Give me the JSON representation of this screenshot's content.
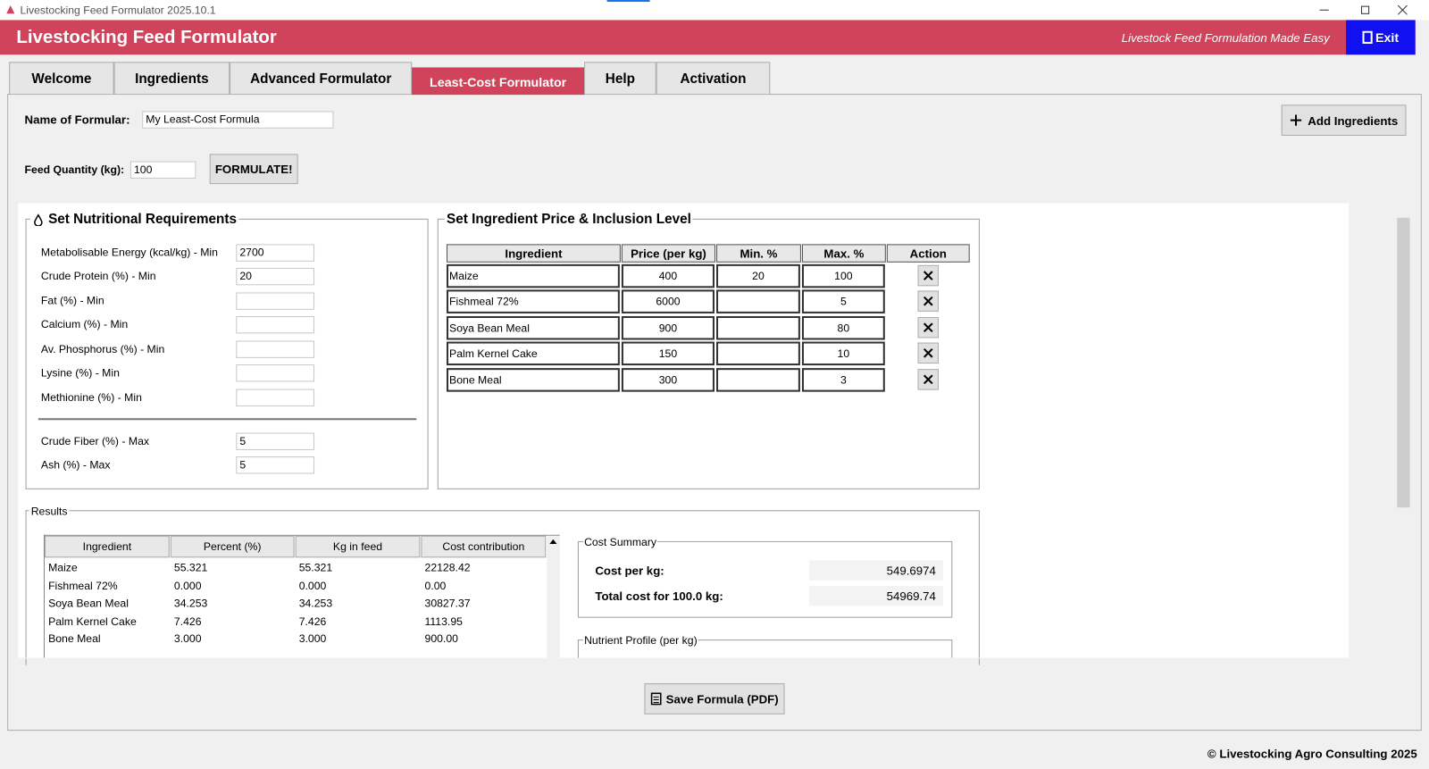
{
  "window": {
    "title": "Livestocking Feed Formulator 2025.10.1"
  },
  "header": {
    "title": "Livestocking Feed Formulator",
    "tagline": "Livestock Feed Formulation Made Easy",
    "exit": "Exit"
  },
  "tabs": [
    "Welcome",
    "Ingredients",
    "Advanced Formulator",
    "Least-Cost Formulator",
    "Help",
    "Activation"
  ],
  "form": {
    "name_label": "Name of Formular:",
    "name_value": "My Least-Cost Formula",
    "quantity_label": "Feed Quantity (kg):",
    "quantity_value": "100",
    "formulate": "FORMULATE!",
    "add_ingredients": "Add Ingredients"
  },
  "requirements": {
    "title": "Set Nutritional Requirements",
    "min_rows": [
      {
        "label": "Metabolisable Energy (kcal/kg) - Min",
        "value": "2700"
      },
      {
        "label": "Crude Protein (%) - Min",
        "value": "20"
      },
      {
        "label": "Fat (%) - Min"
      },
      {
        "label": "Calcium (%) - Min"
      },
      {
        "label": "Av. Phosphorus (%) - Min"
      },
      {
        "label": "Lysine (%) - Min"
      },
      {
        "label": "Methionine (%) - Min"
      }
    ],
    "max_rows": [
      {
        "label": "Crude Fiber (%) - Max",
        "value": "5"
      },
      {
        "label": "Ash (%) - Max",
        "value": "5"
      }
    ]
  },
  "ingredients": {
    "title": "Set Ingredient Price & Inclusion Level",
    "columns": [
      "Ingredient",
      "Price (per kg)",
      "Min. %",
      "Max. %",
      "Action"
    ],
    "rows": [
      {
        "name": "Maize",
        "price": "400",
        "min": "20",
        "max": "100"
      },
      {
        "name": "Fishmeal 72%",
        "price": "6000",
        "max": "5"
      },
      {
        "name": "Soya Bean Meal",
        "price": "900",
        "max": "80"
      },
      {
        "name": "Palm Kernel Cake",
        "price": "150",
        "max": "10"
      },
      {
        "name": "Bone Meal",
        "price": "300",
        "max": "3"
      }
    ]
  },
  "results": {
    "title": "Results",
    "columns": [
      "Ingredient",
      "Percent (%)",
      "Kg in feed",
      "Cost contribution"
    ],
    "rows": [
      [
        "Maize",
        "55.321",
        "55.321",
        "22128.42"
      ],
      [
        "Fishmeal 72%",
        "0.000",
        "0.000",
        "0.00"
      ],
      [
        "Soya Bean Meal",
        "34.253",
        "34.253",
        "30827.37"
      ],
      [
        "Palm Kernel Cake",
        "7.426",
        "7.426",
        "1113.95"
      ],
      [
        "Bone Meal",
        "3.000",
        "3.000",
        "900.00"
      ]
    ]
  },
  "cost_summary": {
    "title": "Cost Summary",
    "cost_per_kg_label": "Cost per kg:",
    "cost_per_kg": "549.6974",
    "total_label": "Total cost for 100.0 kg:",
    "total": "54969.74"
  },
  "nutrient_profile": {
    "title": "Nutrient Profile (per kg)"
  },
  "save": "Save Formula (PDF)",
  "footer": "© Livestocking Agro Consulting 2025"
}
